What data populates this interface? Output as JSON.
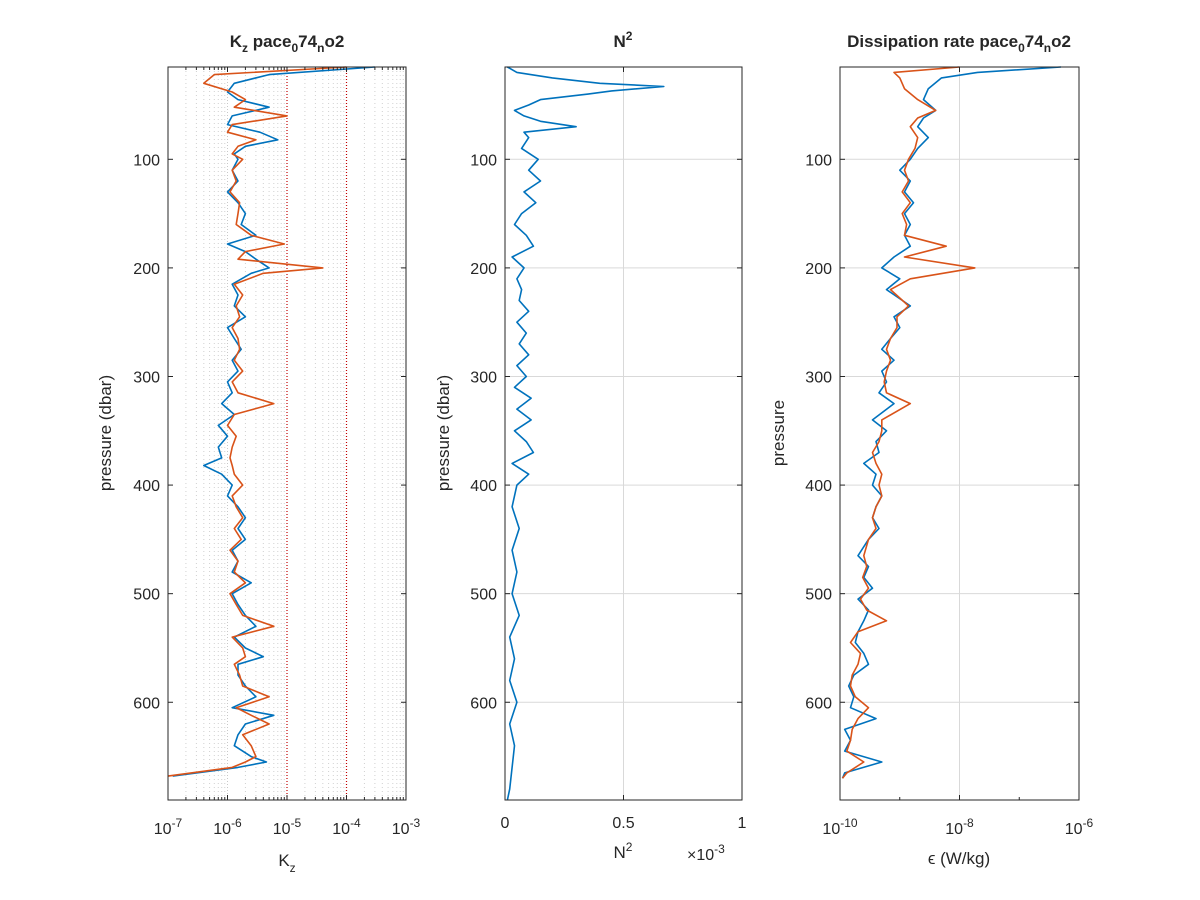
{
  "figure": {
    "colors": {
      "series1": "#0072BD",
      "series2": "#D95319",
      "ref_lines": "#C00000",
      "axis": "#262626",
      "grid": "#D9D9D9"
    }
  },
  "panels": [
    {
      "id": "kz",
      "title": {
        "main": "K",
        "sub1": "z",
        "mid1": " pace",
        "sub2": "0",
        "mid2": "74",
        "sub3": "n",
        "end": "o2"
      },
      "ylabel": "pressure (dbar)",
      "xlabel": {
        "main": "K",
        "sub": "z"
      },
      "yticks": [
        "100",
        "200",
        "300",
        "400",
        "500",
        "600"
      ],
      "xticks": [
        {
          "base": "10",
          "exp": "-7"
        },
        {
          "base": "10",
          "exp": "-6"
        },
        {
          "base": "10",
          "exp": "-5"
        },
        {
          "base": "10",
          "exp": "-4"
        },
        {
          "base": "10",
          "exp": "-3"
        }
      ]
    },
    {
      "id": "n2",
      "title": {
        "main": "N",
        "sup": "2"
      },
      "ylabel": "pressure (dbar)",
      "xlabel": {
        "main": "N",
        "sup": "2"
      },
      "multiplier": {
        "prefix": "×10",
        "exp": "-3"
      },
      "yticks": [
        "100",
        "200",
        "300",
        "400",
        "500",
        "600"
      ],
      "xticks": [
        "0",
        "0.5",
        "1"
      ]
    },
    {
      "id": "eps",
      "title": {
        "main": "Dissipation rate pace",
        "sub1": "0",
        "mid": "74",
        "sub2": "n",
        "end": "o2"
      },
      "ylabel": "pressure",
      "xlabel": {
        "main": "ϵ (W/kg)"
      },
      "yticks": [
        "100",
        "200",
        "300",
        "400",
        "500",
        "600"
      ],
      "xticks": [
        {
          "base": "10",
          "exp": "-10"
        },
        {
          "base": "10",
          "exp": "-8"
        },
        {
          "base": "10",
          "exp": "-6"
        }
      ]
    }
  ],
  "chart_data": [
    {
      "type": "line",
      "title": "Kz pace074no2",
      "xlabel": "Kz",
      "ylabel": "pressure (dbar)",
      "xscale": "log",
      "xlim": [
        1e-07,
        0.001
      ],
      "ylim": [
        15,
        690
      ],
      "y_reversed": true,
      "grid": "x major and minor",
      "reference_lines_x": [
        1e-05,
        0.0001
      ],
      "series": [
        {
          "y": [
            15,
            22,
            30,
            38,
            45,
            52,
            60,
            68,
            75,
            82,
            88,
            95,
            100,
            110,
            120,
            130,
            140,
            150,
            160,
            170,
            178,
            185,
            192,
            200,
            205,
            215,
            225,
            235,
            245,
            255,
            265,
            275,
            285,
            295,
            305,
            315,
            325,
            335,
            345,
            355,
            365,
            375,
            382,
            390,
            400,
            410,
            420,
            430,
            440,
            450,
            460,
            470,
            480,
            490,
            500,
            510,
            520,
            530,
            540,
            550,
            558,
            565,
            575,
            585,
            595,
            605,
            612,
            620,
            630,
            640,
            650,
            655,
            660,
            668
          ],
          "x": [
            0.0003,
            5e-06,
            1.3e-06,
            1e-06,
            1.5e-06,
            5e-06,
            1.2e-06,
            1e-06,
            3.5e-06,
            7e-06,
            2e-06,
            1.3e-06,
            1.5e-06,
            1.2e-06,
            1.5e-06,
            1e-06,
            1.5e-06,
            2e-06,
            1.7e-06,
            3e-06,
            1e-06,
            2e-06,
            3e-06,
            5e-06,
            2.5e-06,
            1.2e-06,
            1.5e-06,
            1.3e-06,
            2e-06,
            1e-06,
            1.3e-06,
            1.7e-06,
            1.2e-06,
            1.5e-06,
            1e-06,
            1.2e-06,
            8e-07,
            1.3e-06,
            7e-07,
            1e-06,
            7e-07,
            8e-07,
            4e-07,
            8e-07,
            1.2e-06,
            1e-06,
            1.5e-06,
            2e-06,
            1.5e-06,
            2e-06,
            1.2e-06,
            1.5e-06,
            1.2e-06,
            2.5e-06,
            1.2e-06,
            1.5e-06,
            2e-06,
            3e-06,
            1.3e-06,
            2e-06,
            4e-06,
            1.5e-06,
            1.5e-06,
            2e-06,
            3e-06,
            1.2e-06,
            6e-06,
            2e-06,
            1.5e-06,
            1.3e-06,
            2.5e-06,
            4.5e-06,
            1.5e-06,
            1.2e-07
          ]
        },
        {
          "y": [
            15,
            22,
            30,
            38,
            45,
            52,
            60,
            68,
            75,
            82,
            88,
            95,
            100,
            110,
            120,
            130,
            140,
            150,
            160,
            170,
            178,
            185,
            192,
            200,
            205,
            215,
            225,
            235,
            245,
            255,
            265,
            275,
            285,
            295,
            305,
            315,
            325,
            335,
            345,
            355,
            365,
            375,
            382,
            390,
            400,
            410,
            420,
            430,
            440,
            450,
            460,
            470,
            480,
            490,
            500,
            510,
            520,
            530,
            540,
            550,
            558,
            565,
            575,
            585,
            595,
            605,
            612,
            620,
            630,
            640,
            650,
            655,
            660,
            668
          ],
          "x": [
            0.0001,
            6e-07,
            4e-07,
            1.2e-06,
            2e-06,
            1.3e-06,
            1e-05,
            1.2e-06,
            1e-06,
            3e-06,
            1.5e-06,
            1.2e-06,
            1.8e-06,
            1.2e-06,
            1.4e-06,
            1.1e-06,
            1.6e-06,
            1.5e-06,
            1.4e-06,
            2.5e-06,
            9e-06,
            2e-06,
            1.5e-06,
            4e-05,
            4e-06,
            1.3e-06,
            1.8e-06,
            1.4e-06,
            1.6e-06,
            1.2e-06,
            1.5e-06,
            1.6e-06,
            1.3e-06,
            1.8e-06,
            1.2e-06,
            1.5e-06,
            6e-06,
            1.3e-06,
            1e-06,
            1.4e-06,
            1.2e-06,
            1.1e-06,
            1.2e-06,
            1.3e-06,
            1.8e-06,
            1.2e-06,
            1.4e-06,
            1.8e-06,
            1.3e-06,
            1.7e-06,
            1.1e-06,
            1.5e-06,
            1.3e-06,
            2e-06,
            1.1e-06,
            1.4e-06,
            1.8e-06,
            6e-06,
            1.2e-06,
            1.8e-06,
            2e-06,
            1.3e-06,
            1.6e-06,
            1.8e-06,
            5e-06,
            1.4e-06,
            2.5e-06,
            5e-06,
            1.8e-06,
            2.5e-06,
            3e-06,
            2e-06,
            1.2e-06,
            1e-07
          ]
        }
      ]
    },
    {
      "type": "line",
      "title": "N2",
      "xlabel": "N2",
      "ylabel": "pressure (dbar)",
      "xlim": [
        0,
        0.001
      ],
      "ylim": [
        15,
        690
      ],
      "y_reversed": true,
      "grid": "major",
      "series": [
        {
          "y": [
            15,
            20,
            25,
            30,
            33,
            37,
            40,
            45,
            50,
            55,
            60,
            65,
            70,
            75,
            80,
            90,
            100,
            110,
            120,
            130,
            140,
            150,
            160,
            170,
            180,
            190,
            200,
            210,
            220,
            230,
            240,
            250,
            260,
            270,
            280,
            290,
            300,
            310,
            320,
            330,
            340,
            350,
            360,
            370,
            380,
            390,
            400,
            420,
            440,
            460,
            480,
            500,
            520,
            540,
            560,
            580,
            600,
            620,
            640,
            660,
            680,
            690
          ],
          "x": [
            1e-05,
            5e-05,
            0.0002,
            0.0004,
            0.00067,
            0.00045,
            0.00035,
            0.00015,
            0.0001,
            4e-05,
            8e-05,
            0.00015,
            0.0003,
            8e-05,
            0.0001,
            7e-05,
            0.00014,
            0.0001,
            0.00015,
            8e-05,
            0.00013,
            7e-05,
            4e-05,
            9e-05,
            0.00012,
            3e-05,
            8e-05,
            5e-05,
            7e-05,
            6e-05,
            0.0001,
            5e-05,
            9e-05,
            6e-05,
            0.0001,
            5e-05,
            9e-05,
            4e-05,
            0.00011,
            5e-05,
            0.00011,
            4e-05,
            9e-05,
            0.00012,
            3e-05,
            0.0001,
            5e-05,
            3e-05,
            6e-05,
            3e-05,
            5e-05,
            3e-05,
            6e-05,
            2e-05,
            4e-05,
            2e-05,
            5e-05,
            2e-05,
            4e-05,
            3e-05,
            2e-05,
            1e-05
          ]
        }
      ]
    },
    {
      "type": "line",
      "title": "Dissipation rate pace074no2",
      "xlabel": "ϵ (W/kg)",
      "ylabel": "pressure",
      "xscale": "log",
      "xlim": [
        1e-10,
        1e-06
      ],
      "ylim": [
        15,
        690
      ],
      "y_reversed": true,
      "grid": "major",
      "series": [
        {
          "y": [
            15,
            20,
            25,
            35,
            45,
            55,
            62,
            70,
            80,
            90,
            100,
            110,
            120,
            130,
            140,
            150,
            160,
            170,
            180,
            190,
            200,
            210,
            220,
            235,
            245,
            255,
            265,
            275,
            285,
            295,
            305,
            315,
            325,
            340,
            350,
            360,
            370,
            380,
            390,
            400,
            410,
            420,
            430,
            440,
            450,
            465,
            475,
            485,
            495,
            505,
            515,
            525,
            535,
            545,
            555,
            565,
            575,
            585,
            595,
            605,
            615,
            625,
            635,
            645,
            655,
            665,
            670
          ],
          "x": [
            5e-07,
            2e-08,
            5e-09,
            3e-09,
            2.5e-09,
            4e-09,
            2.5e-09,
            2e-09,
            3e-09,
            2e-09,
            1.5e-09,
            1e-09,
            1.5e-09,
            1.2e-09,
            1.7e-09,
            1.2e-09,
            1.5e-09,
            1.2e-09,
            1.5e-09,
            8e-10,
            5e-10,
            1e-09,
            6e-10,
            1.5e-09,
            8e-10,
            1e-09,
            7e-10,
            5e-10,
            8e-10,
            5e-10,
            6e-10,
            4.5e-10,
            8e-10,
            3.5e-10,
            6e-10,
            4e-10,
            4.5e-10,
            2.5e-10,
            4e-10,
            3.5e-10,
            5e-10,
            4e-10,
            3.5e-10,
            4.5e-10,
            3e-10,
            2e-10,
            3e-10,
            2.5e-10,
            3.5e-10,
            2e-10,
            3e-10,
            2.5e-10,
            2e-10,
            1.8e-10,
            2.5e-10,
            3e-10,
            1.7e-10,
            1.4e-10,
            1.7e-10,
            1.5e-10,
            4e-10,
            1.2e-10,
            1.5e-10,
            1.2e-10,
            5e-10,
            1.2e-10,
            1.1e-10
          ]
        },
        {
          "y": [
            15,
            20,
            25,
            35,
            45,
            55,
            62,
            70,
            80,
            90,
            100,
            110,
            120,
            130,
            140,
            150,
            160,
            170,
            180,
            190,
            200,
            210,
            220,
            235,
            245,
            255,
            265,
            275,
            285,
            295,
            305,
            315,
            325,
            340,
            350,
            360,
            370,
            380,
            390,
            400,
            410,
            420,
            430,
            440,
            450,
            465,
            475,
            485,
            495,
            505,
            515,
            525,
            535,
            545,
            555,
            565,
            575,
            585,
            595,
            605,
            615,
            625,
            635,
            645,
            655,
            665,
            670
          ],
          "x": [
            1e-08,
            8e-10,
            1e-09,
            1.2e-09,
            2e-09,
            4e-09,
            2e-09,
            1.5e-09,
            2e-09,
            1.8e-09,
            1.4e-09,
            1.2e-09,
            1.4e-09,
            1.1e-09,
            1.5e-09,
            1.1e-09,
            1.3e-09,
            1.2e-09,
            6e-09,
            1.2e-09,
            1.8e-08,
            1.5e-09,
            7e-10,
            1.4e-09,
            9e-10,
            9e-10,
            7e-10,
            6e-10,
            7e-10,
            6e-10,
            5.5e-10,
            6e-10,
            1.5e-09,
            5e-10,
            5e-10,
            4.5e-10,
            3.5e-10,
            4e-10,
            5e-10,
            4.5e-10,
            5e-10,
            4e-10,
            3.5e-10,
            4e-10,
            3e-10,
            2.5e-10,
            2.8e-10,
            2.4e-10,
            3e-10,
            2.2e-10,
            2.8e-10,
            6e-10,
            2e-10,
            1.5e-10,
            2.2e-10,
            2e-10,
            1.6e-10,
            1.5e-10,
            1.8e-10,
            3e-10,
            2e-10,
            1.6e-10,
            1.5e-10,
            1.3e-10,
            2.5e-10,
            1.3e-10,
            1.1e-10
          ]
        }
      ]
    }
  ]
}
